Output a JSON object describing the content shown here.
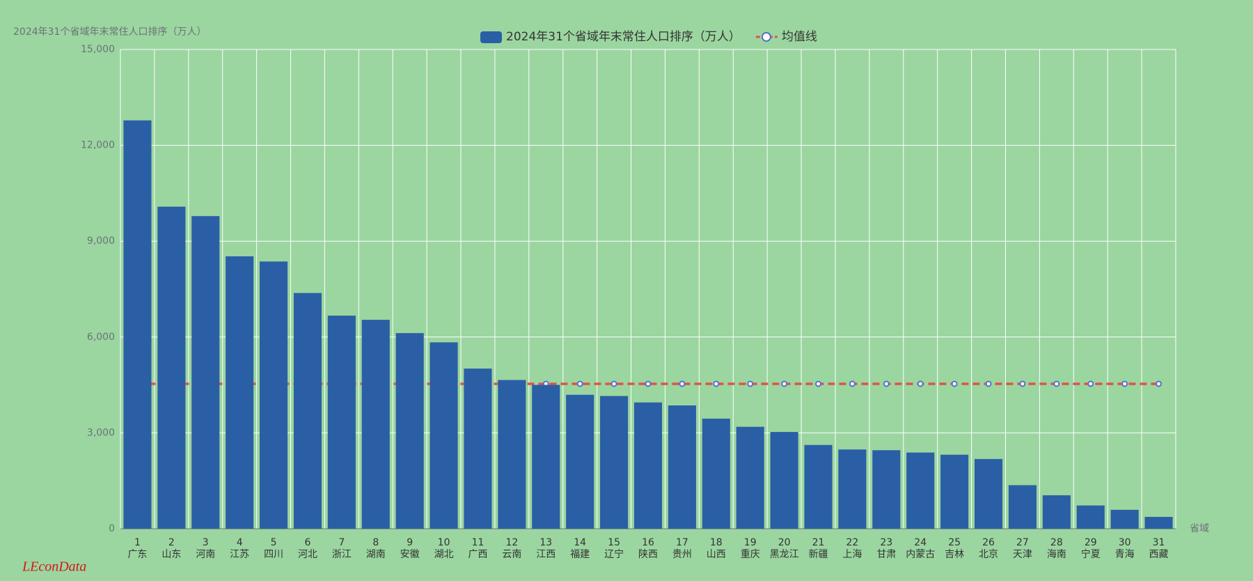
{
  "chart_data": {
    "type": "bar",
    "title": "2024年31个省域年末常住人口排序（万人）",
    "x_label": "省域",
    "watermark": "LEconData",
    "categories": [
      [
        "1",
        "广东"
      ],
      [
        "2",
        "山东"
      ],
      [
        "3",
        "河南"
      ],
      [
        "4",
        "江苏"
      ],
      [
        "5",
        "四川"
      ],
      [
        "6",
        "河北"
      ],
      [
        "7",
        "浙江"
      ],
      [
        "8",
        "湖南"
      ],
      [
        "9",
        "安徽"
      ],
      [
        "10",
        "湖北"
      ],
      [
        "11",
        "广西"
      ],
      [
        "12",
        "云南"
      ],
      [
        "13",
        "江西"
      ],
      [
        "14",
        "福建"
      ],
      [
        "15",
        "辽宁"
      ],
      [
        "16",
        "陕西"
      ],
      [
        "17",
        "贵州"
      ],
      [
        "18",
        "山西"
      ],
      [
        "19",
        "重庆"
      ],
      [
        "20",
        "黑龙江"
      ],
      [
        "21",
        "新疆"
      ],
      [
        "22",
        "上海"
      ],
      [
        "23",
        "甘肃"
      ],
      [
        "24",
        "内蒙古"
      ],
      [
        "25",
        "吉林"
      ],
      [
        "26",
        "北京"
      ],
      [
        "27",
        "天津"
      ],
      [
        "28",
        "海南"
      ],
      [
        "29",
        "宁夏"
      ],
      [
        "30",
        "青海"
      ],
      [
        "31",
        "西藏"
      ]
    ],
    "series": [
      {
        "name": "2024年31个省域年末常住人口排序（万人）",
        "type": "bar",
        "color": "#2a5fa5",
        "values": [
          12780,
          10080,
          9785,
          8526,
          8364,
          7378,
          6670,
          6539,
          6123,
          5834,
          5013,
          4655,
          4502,
          4193,
          4155,
          3953,
          3859,
          3446,
          3191,
          3029,
          2623,
          2480,
          2458,
          2385,
          2317,
          2183,
          1364,
          1048,
          729,
          593,
          372
        ]
      },
      {
        "name": "均值线",
        "type": "line",
        "color": "#e0524a",
        "values": [
          4536,
          4536,
          4536,
          4536,
          4536,
          4536,
          4536,
          4536,
          4536,
          4536,
          4536,
          4536,
          4536,
          4536,
          4536,
          4536,
          4536,
          4536,
          4536,
          4536,
          4536,
          4536,
          4536,
          4536,
          4536,
          4536,
          4536,
          4536,
          4536,
          4536,
          4536
        ]
      }
    ],
    "ylim": [
      0,
      15000
    ],
    "yticks": [
      0,
      {
        "value": 3000,
        "label": "3,000"
      },
      {
        "value": 6000,
        "label": "6,000"
      },
      {
        "value": 9000,
        "label": "9,000"
      },
      {
        "value": 12000,
        "label": "12,000"
      },
      {
        "value": 15000,
        "label": "15,000"
      }
    ],
    "grid": true
  }
}
